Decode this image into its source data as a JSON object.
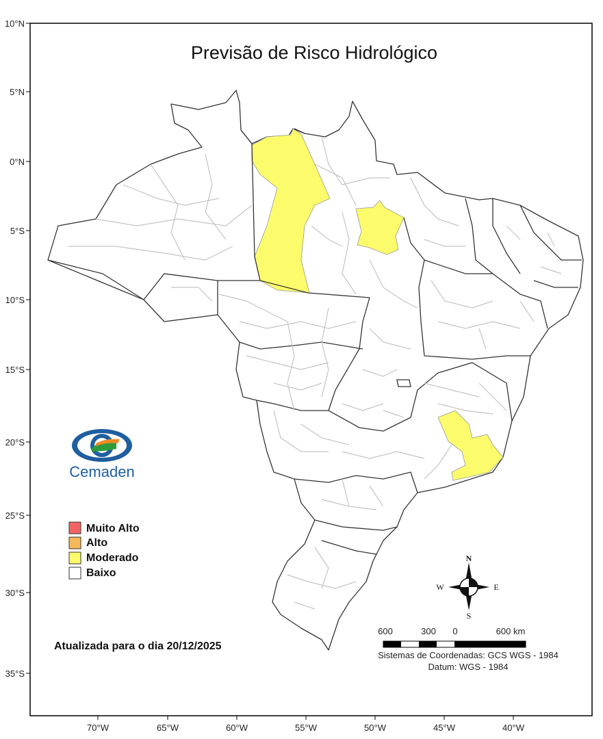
{
  "title": "Previsão de Risco Hidrológico",
  "y_axis_labels": [
    "10°N",
    "5°N",
    "0°N",
    "5°S",
    "10°S",
    "15°S",
    "20°S",
    "25°S",
    "30°S",
    "35°S"
  ],
  "x_axis_labels": [
    "70°W",
    "65°W",
    "60°W",
    "55°W",
    "50°W",
    "45°W",
    "40°W"
  ],
  "legend": {
    "items": [
      {
        "label": "Muito Alto",
        "color": "#f26464"
      },
      {
        "label": "Alto",
        "color": "#f5b85a"
      },
      {
        "label": "Moderado",
        "color": "#fbfb6b"
      },
      {
        "label": "Baixo",
        "color": "#ffffff"
      }
    ]
  },
  "update_text": "Atualizada para o dia 20/12/2025",
  "logo": {
    "name": "Cemaden"
  },
  "compass": {
    "n": "N",
    "s": "S",
    "e": "E",
    "w": "W"
  },
  "scale_bar": {
    "labels": [
      "600",
      "300",
      "0",
      "600 km"
    ]
  },
  "coord_system": "Sistemas de Coordenadas: GCS WGS - 1984",
  "datum": "Datum: WGS - 1984",
  "colors": {
    "moderado": "#fbfb6b",
    "frame": "#000000",
    "state_border": "#333333",
    "municipal_border": "#c4c4c4",
    "logo_blue": "#1f5fa0"
  }
}
